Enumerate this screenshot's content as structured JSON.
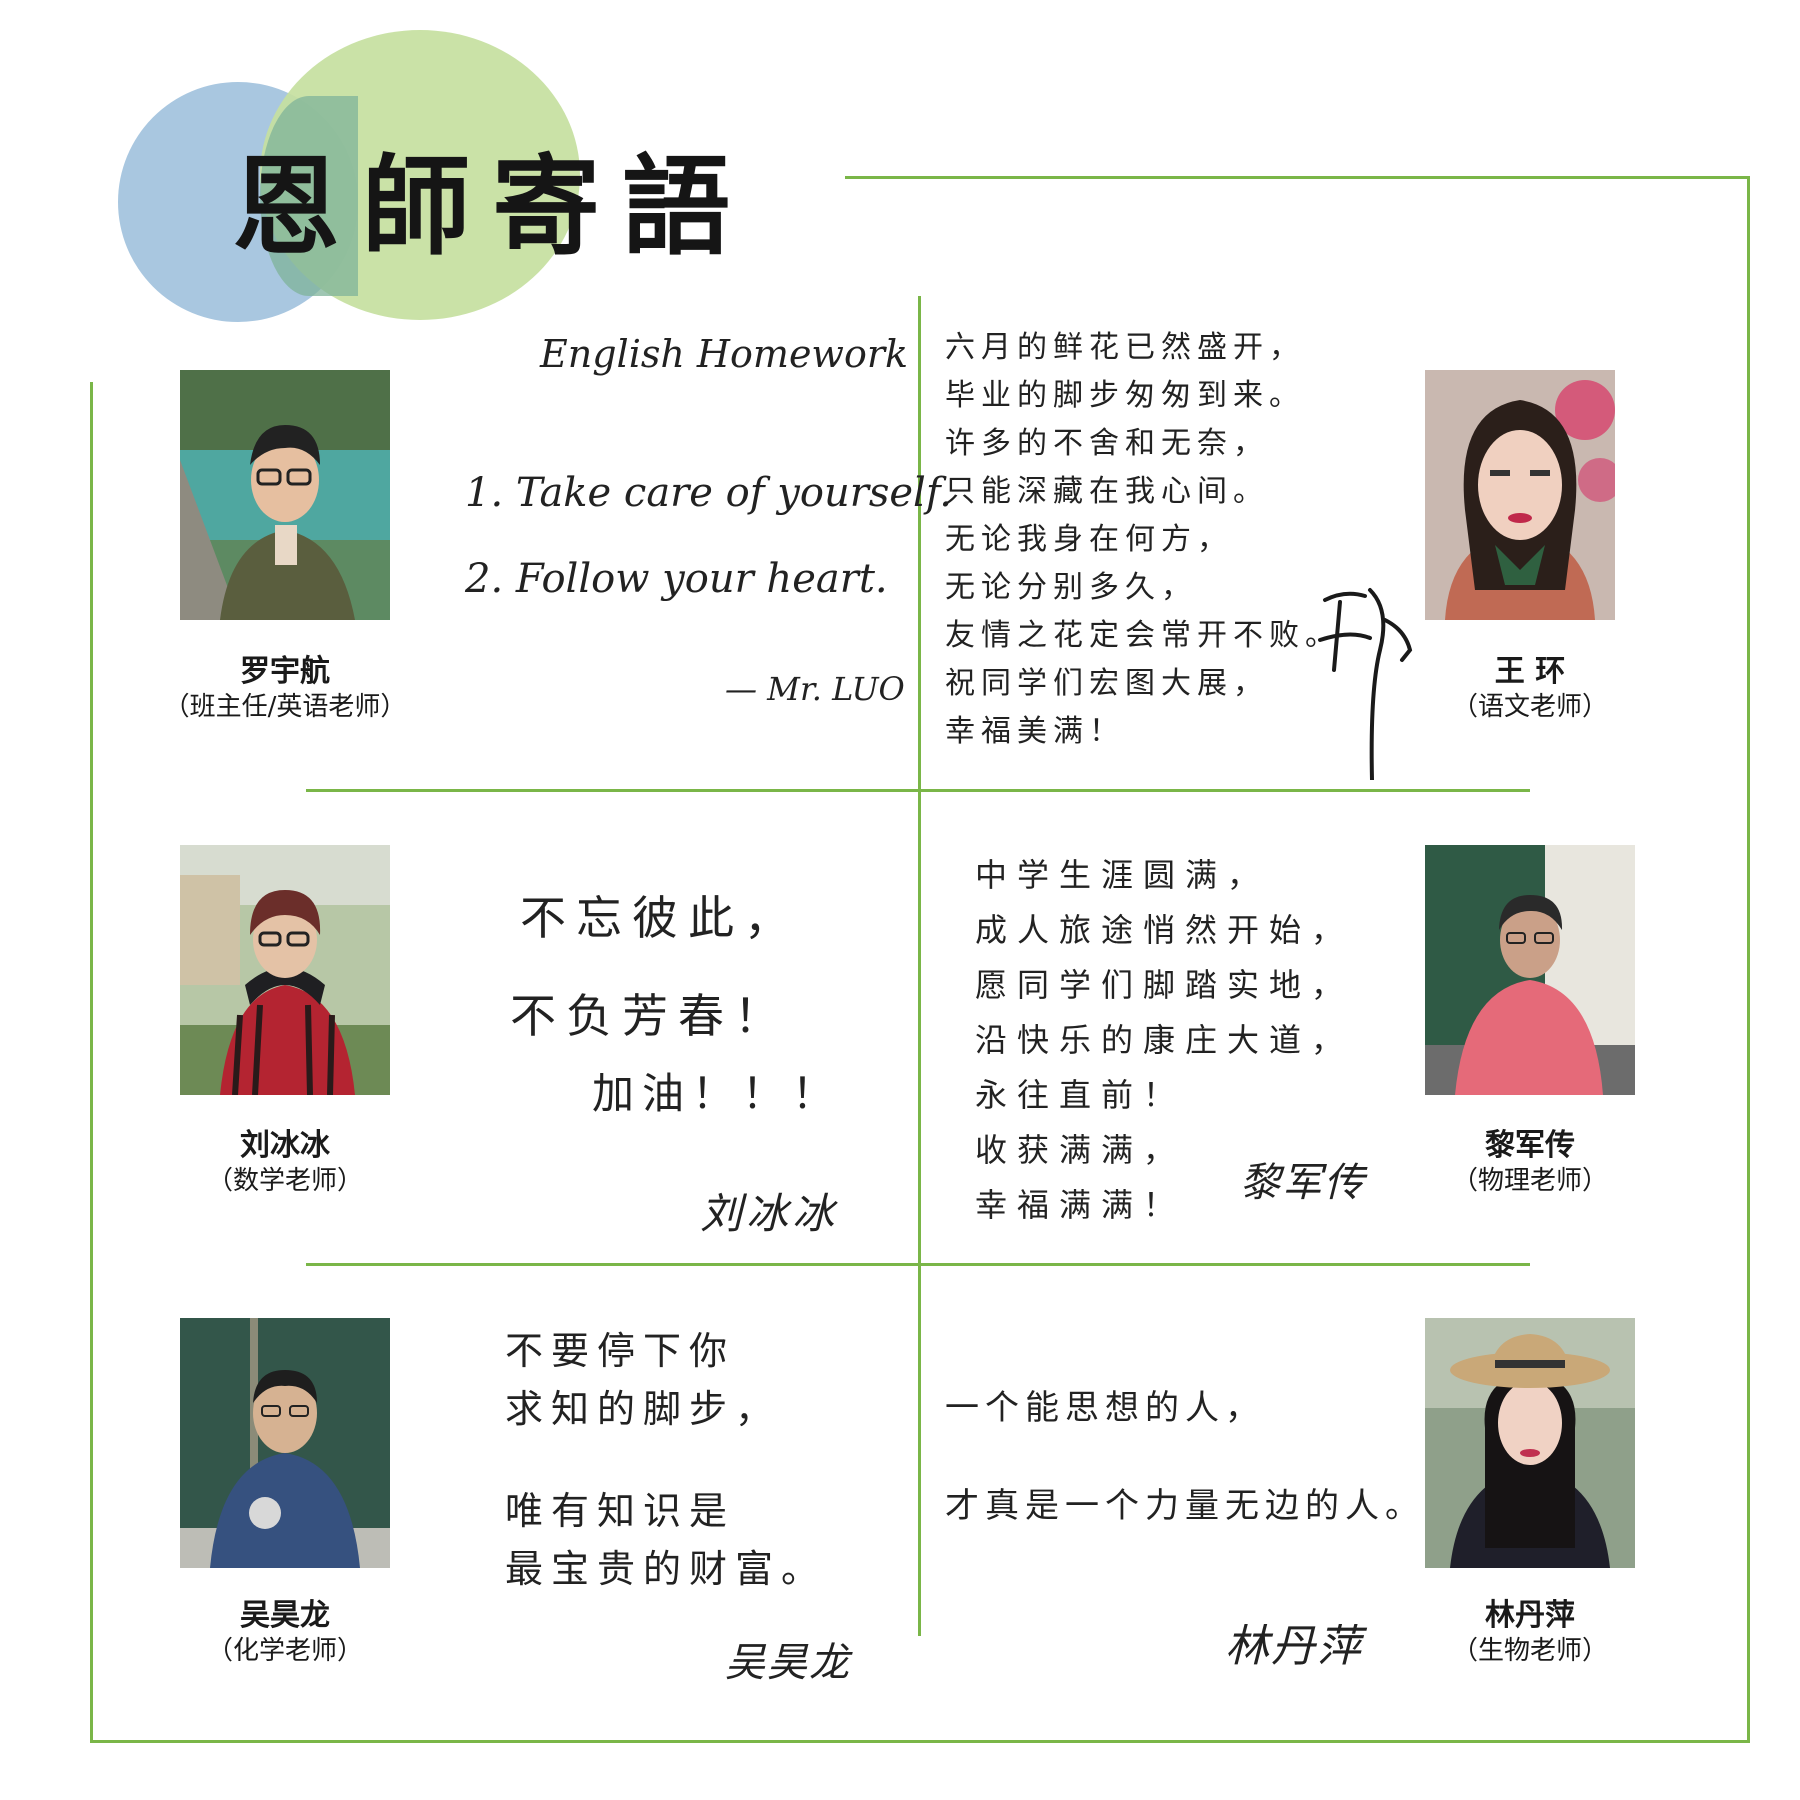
{
  "header": {
    "title": "恩師寄語"
  },
  "teachers": [
    {
      "name": "罗宇航",
      "role": "（班主任/英语老师）",
      "message": {
        "heading": "English Homework",
        "lines": [
          "1. Take care of yourself.",
          "2. Follow your heart."
        ],
        "signature": "— Mr. LUO"
      }
    },
    {
      "name": "王 环",
      "role": "（语文老师）",
      "message": {
        "lines": [
          "六月的鲜花已然盛开，",
          "毕业的脚步匆匆到来。",
          "许多的不舍和无奈，",
          "只能深藏在我心间。",
          "无论我身在何方，",
          "无论分别多久，",
          "友情之花定会常开不败。",
          "祝同学们宏图大展，",
          "幸福美满！"
        ],
        "signature": "王环"
      }
    },
    {
      "name": "刘冰冰",
      "role": "（数学老师）",
      "message": {
        "lines": [
          "不忘彼此，",
          "不负芳春！",
          "加油！！！"
        ],
        "signature": "刘冰冰"
      }
    },
    {
      "name": "黎军传",
      "role": "（物理老师）",
      "message": {
        "lines": [
          "中学生涯圆满，",
          "成人旅途悄然开始，",
          "愿同学们脚踏实地，",
          "沿快乐的康庄大道，",
          "永往直前！",
          "收获满满，",
          "幸福满满！"
        ],
        "signature": "黎军传"
      }
    },
    {
      "name": "吴昊龙",
      "role": "（化学老师）",
      "message": {
        "lines": [
          "不要停下你",
          "求知的脚步，",
          "唯有知识是",
          "最宝贵的财富。"
        ],
        "signature": "吴昊龙"
      }
    },
    {
      "name": "林丹萍",
      "role": "（生物老师）",
      "message": {
        "lines": [
          "一个能思想的人，",
          "才真是一个力量无边的人。"
        ],
        "signature": "林丹萍"
      }
    }
  ]
}
